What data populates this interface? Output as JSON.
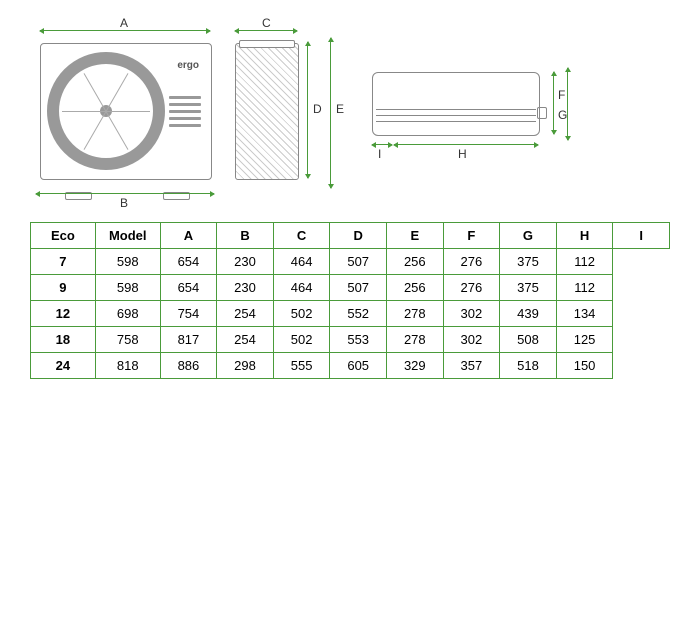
{
  "diagram": {
    "brand": "ergo",
    "dim_labels": {
      "A": "A",
      "B": "B",
      "C": "C",
      "D": "D",
      "E": "E",
      "F": "F",
      "G": "G",
      "H": "H",
      "I": "I"
    },
    "colors": {
      "dimension_line": "#4a9b3a",
      "unit_outline": "#888888",
      "table_border": "#4a9b3a",
      "text": "#333333",
      "background": "#ffffff"
    }
  },
  "table": {
    "series_label": "Eco",
    "header": [
      "Model",
      "A",
      "B",
      "C",
      "D",
      "E",
      "F",
      "G",
      "H",
      "I"
    ],
    "rows": [
      {
        "model": "7",
        "vals": [
          "598",
          "654",
          "230",
          "464",
          "507",
          "256",
          "276",
          "375",
          "112"
        ]
      },
      {
        "model": "9",
        "vals": [
          "598",
          "654",
          "230",
          "464",
          "507",
          "256",
          "276",
          "375",
          "112"
        ]
      },
      {
        "model": "12",
        "vals": [
          "698",
          "754",
          "254",
          "502",
          "552",
          "278",
          "302",
          "439",
          "134"
        ]
      },
      {
        "model": "18",
        "vals": [
          "758",
          "817",
          "254",
          "502",
          "553",
          "278",
          "302",
          "508",
          "125"
        ]
      },
      {
        "model": "24",
        "vals": [
          "818",
          "886",
          "298",
          "555",
          "605",
          "329",
          "357",
          "518",
          "150"
        ]
      }
    ]
  }
}
